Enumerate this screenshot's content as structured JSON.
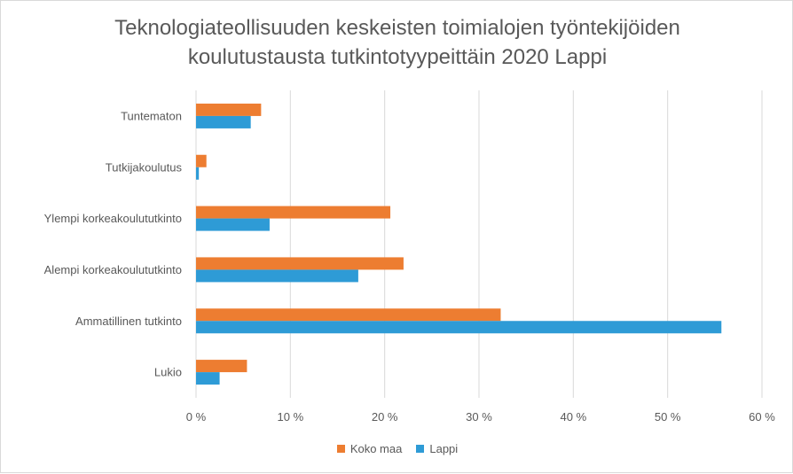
{
  "chart_data": {
    "type": "bar",
    "orientation": "horizontal",
    "title_lines": [
      "Teknologiateollisuuden keskeisten toimialojen työntekijöiden",
      "koulutustausta tutkintotyypeittäin 2020 Lappi"
    ],
    "categories": [
      "Tuntematon",
      "Tutkijakoulutus",
      "Ylempi korkeakoulututkinto",
      "Alempi korkeakoulututkinto",
      "Ammatillinen tutkinto",
      "Lukio"
    ],
    "series": [
      {
        "name": "Koko maa",
        "color": "#ED7D31",
        "values": [
          6.9,
          1.1,
          20.6,
          22.0,
          32.3,
          5.4
        ]
      },
      {
        "name": "Lappi",
        "color": "#2E9BD6",
        "values": [
          5.8,
          0.3,
          7.8,
          17.2,
          55.7,
          2.5
        ]
      }
    ],
    "x_ticks": [
      "0 %",
      "10 %",
      "20 %",
      "30 %",
      "40 %",
      "50 %",
      "60 %"
    ],
    "xlim": [
      0,
      60
    ],
    "grid": true,
    "legend_position": "bottom"
  }
}
